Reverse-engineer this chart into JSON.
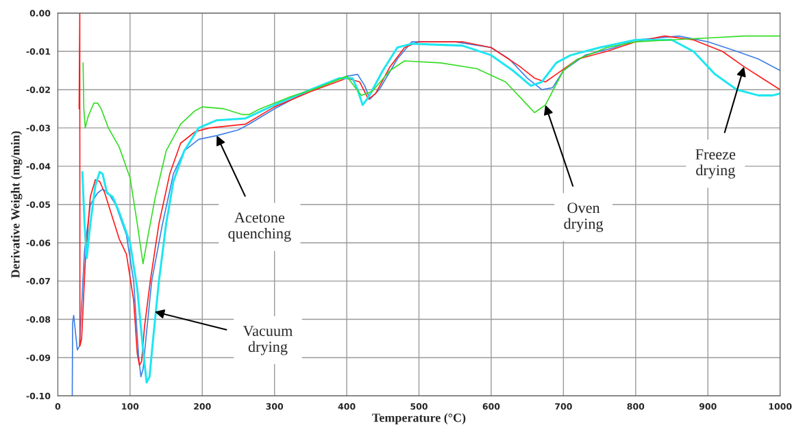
{
  "chart_data": {
    "type": "line",
    "xlabel": "Temperature (°C)",
    "ylabel": "Derivative Weight (mg/min)",
    "xlim": [
      0,
      1000
    ],
    "xticks": [
      0,
      100,
      200,
      300,
      400,
      500,
      600,
      700,
      800,
      900,
      1000
    ],
    "ylim": [
      -0.1,
      0.0
    ],
    "yticks": [
      {
        "value": -0.1,
        "label": "-0.10"
      },
      {
        "value": -0.09,
        "label": "-0.09"
      },
      {
        "value": -0.08,
        "label": "-0.08"
      },
      {
        "value": -0.07,
        "label": "-0.07"
      },
      {
        "value": -0.06,
        "label": "-0.06"
      },
      {
        "value": -0.05,
        "label": "-0.05"
      },
      {
        "value": -0.04,
        "label": "-0.04"
      },
      {
        "value": -0.03,
        "label": "-0.03"
      },
      {
        "value": -0.02,
        "label": "-0.02"
      },
      {
        "value": -0.01,
        "label": "-0.01"
      },
      {
        "value": 0.0,
        "label": "0.00"
      }
    ],
    "grid": true,
    "legend": false,
    "marker": "none",
    "line_style": "solid",
    "series": [
      {
        "color": "#3d7ee6",
        "x": [
          20,
          20.5,
          22,
          27,
          30,
          37,
          45,
          55,
          62,
          70,
          80,
          95,
          105,
          112,
          115,
          118,
          122,
          130,
          145,
          160,
          175,
          195,
          220,
          250,
          265,
          300,
          350,
          400,
          415,
          425,
          432,
          445,
          470,
          490,
          550,
          600,
          625,
          650,
          670,
          685,
          700,
          730,
          770,
          800,
          830,
          860,
          900,
          940,
          970,
          1000
        ],
        "values": [
          -0.1,
          -0.081,
          -0.079,
          -0.088,
          -0.087,
          -0.062,
          -0.05,
          -0.047,
          -0.046,
          -0.047,
          -0.05,
          -0.058,
          -0.07,
          -0.09,
          -0.095,
          -0.093,
          -0.085,
          -0.07,
          -0.055,
          -0.042,
          -0.036,
          -0.033,
          -0.032,
          -0.0305,
          -0.029,
          -0.025,
          -0.02,
          -0.0165,
          -0.016,
          -0.019,
          -0.0225,
          -0.02,
          -0.012,
          -0.0075,
          -0.0075,
          -0.009,
          -0.012,
          -0.017,
          -0.02,
          -0.0195,
          -0.015,
          -0.011,
          -0.009,
          -0.007,
          -0.0065,
          -0.006,
          -0.0075,
          -0.01,
          -0.012,
          -0.015
        ]
      },
      {
        "color": "#ff1a1a",
        "x": [
          29.5,
          30.4,
          30.6,
          33,
          38,
          45,
          52,
          58,
          65,
          75,
          85,
          95,
          105,
          110,
          113,
          116,
          120,
          128,
          140,
          155,
          170,
          190,
          210,
          260,
          300,
          350,
          400,
          418,
          430,
          440,
          460,
          480,
          500,
          560,
          600,
          640,
          660,
          675,
          690,
          720,
          760,
          800,
          840,
          880,
          920,
          950,
          975,
          1000
        ],
        "values": [
          -0.025,
          0.0,
          -0.087,
          -0.085,
          -0.065,
          -0.048,
          -0.0435,
          -0.044,
          -0.047,
          -0.053,
          -0.059,
          -0.063,
          -0.075,
          -0.089,
          -0.092,
          -0.091,
          -0.082,
          -0.07,
          -0.055,
          -0.042,
          -0.034,
          -0.031,
          -0.03,
          -0.029,
          -0.0245,
          -0.0205,
          -0.017,
          -0.018,
          -0.0225,
          -0.021,
          -0.014,
          -0.009,
          -0.0075,
          -0.0075,
          -0.009,
          -0.014,
          -0.017,
          -0.018,
          -0.016,
          -0.012,
          -0.01,
          -0.0075,
          -0.006,
          -0.007,
          -0.01,
          -0.014,
          -0.017,
          -0.02
        ]
      },
      {
        "color": "#1fe6f0",
        "x": [
          34,
          37,
          40,
          45,
          52,
          58,
          62,
          68,
          76,
          85,
          100,
          110,
          118,
          123,
          127,
          132,
          140,
          150,
          160,
          175,
          195,
          220,
          260,
          300,
          350,
          390,
          408,
          415,
          422,
          430,
          450,
          470,
          490,
          560,
          600,
          630,
          655,
          670,
          690,
          710,
          750,
          800,
          850,
          880,
          910,
          940,
          970,
          990,
          1000
        ],
        "values": [
          -0.0415,
          -0.055,
          -0.064,
          -0.055,
          -0.045,
          -0.0415,
          -0.042,
          -0.047,
          -0.048,
          -0.052,
          -0.06,
          -0.072,
          -0.088,
          -0.0965,
          -0.095,
          -0.085,
          -0.07,
          -0.055,
          -0.044,
          -0.036,
          -0.03,
          -0.028,
          -0.0275,
          -0.024,
          -0.02,
          -0.017,
          -0.017,
          -0.02,
          -0.024,
          -0.022,
          -0.015,
          -0.009,
          -0.008,
          -0.0085,
          -0.011,
          -0.015,
          -0.019,
          -0.018,
          -0.013,
          -0.011,
          -0.009,
          -0.007,
          -0.007,
          -0.01,
          -0.016,
          -0.02,
          -0.0215,
          -0.0215,
          -0.021
        ]
      },
      {
        "color": "#33dd22",
        "x": [
          35,
          36,
          38,
          42,
          50,
          55,
          60,
          70,
          85,
          100,
          110,
          118,
          125,
          135,
          150,
          170,
          190,
          200,
          230,
          255,
          265,
          280,
          320,
          360,
          400,
          412,
          420,
          435,
          460,
          480,
          530,
          580,
          620,
          650,
          660,
          675,
          700,
          720,
          760,
          800,
          850,
          900,
          950,
          1000
        ],
        "values": [
          -0.013,
          -0.025,
          -0.03,
          -0.027,
          -0.0235,
          -0.0235,
          -0.025,
          -0.03,
          -0.035,
          -0.043,
          -0.055,
          -0.0655,
          -0.058,
          -0.048,
          -0.036,
          -0.029,
          -0.0255,
          -0.0245,
          -0.025,
          -0.0265,
          -0.0265,
          -0.025,
          -0.022,
          -0.0195,
          -0.0165,
          -0.0195,
          -0.0215,
          -0.0205,
          -0.015,
          -0.0125,
          -0.013,
          -0.0145,
          -0.018,
          -0.024,
          -0.026,
          -0.024,
          -0.015,
          -0.012,
          -0.009,
          -0.0075,
          -0.007,
          -0.0065,
          -0.006,
          -0.006
        ]
      }
    ],
    "annotations": [
      {
        "text": "Acetone\nquenching",
        "x": 220,
        "y": -0.032
      },
      {
        "text": "Vacuum\ndrying",
        "x": 134,
        "y": -0.078
      },
      {
        "text": "Oven\ndrying",
        "x": 675,
        "y": -0.024
      },
      {
        "text": "Freeze\ndrying",
        "x": 950,
        "y": -0.014
      }
    ]
  }
}
